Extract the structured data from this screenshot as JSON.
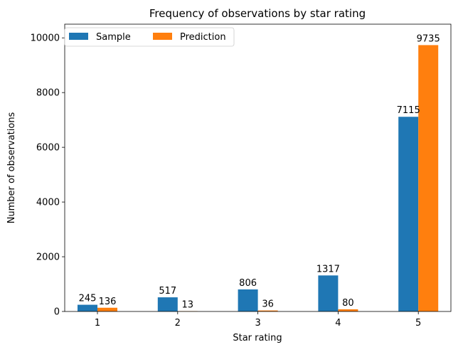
{
  "chart_data": {
    "type": "bar",
    "title": "Frequency of observations by star rating",
    "xlabel": "Star rating",
    "ylabel": "Number of observations",
    "categories": [
      "1",
      "2",
      "3",
      "4",
      "5"
    ],
    "series": [
      {
        "name": "Sample",
        "color": "#1f77b4",
        "values": [
          245,
          517,
          806,
          1317,
          7115
        ]
      },
      {
        "name": "Prediction",
        "color": "#ff7f0e",
        "values": [
          136,
          13,
          36,
          80,
          9735
        ]
      }
    ],
    "ylim": [
      0,
      10500
    ],
    "yticks": [
      "0",
      "2000",
      "4000",
      "6000",
      "8000",
      "10000"
    ],
    "grid": false,
    "legend_position": "top-left"
  }
}
